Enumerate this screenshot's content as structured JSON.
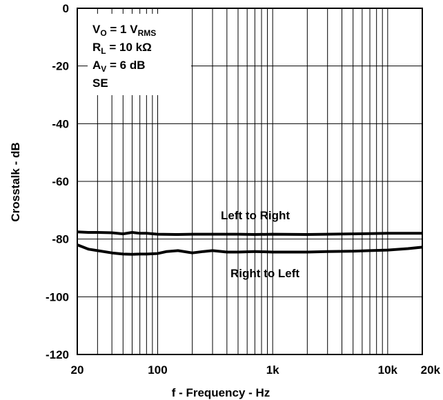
{
  "chart_data": {
    "type": "line",
    "title": "",
    "xlabel": "f - Frequency - Hz",
    "ylabel": "Crosstalk - dB",
    "x_scale": "log",
    "xlim": [
      20,
      20000
    ],
    "ylim": [
      -120,
      0
    ],
    "grid": true,
    "x_ticks": [
      {
        "value": 20,
        "label": "20"
      },
      {
        "value": 100,
        "label": "100"
      },
      {
        "value": 1000,
        "label": "1k"
      },
      {
        "value": 10000,
        "label": "10k"
      },
      {
        "value": 20000,
        "label": "20k"
      }
    ],
    "y_ticks": [
      {
        "value": 0,
        "label": "0"
      },
      {
        "value": -20,
        "label": "-20"
      },
      {
        "value": -40,
        "label": "-40"
      },
      {
        "value": -60,
        "label": "-60"
      },
      {
        "value": -80,
        "label": "-80"
      },
      {
        "value": -100,
        "label": "-100"
      },
      {
        "value": -120,
        "label": "-120"
      }
    ],
    "conditions": [
      {
        "main": "V",
        "sub": "O",
        "rest": " = 1 V",
        "sub2": "RMS"
      },
      {
        "main": "R",
        "sub": "L",
        "rest": " = 10 kΩ",
        "sub2": ""
      },
      {
        "main": "A",
        "sub": "V",
        "rest": " = 6 dB",
        "sub2": ""
      },
      {
        "main": "SE",
        "sub": "",
        "rest": "",
        "sub2": ""
      }
    ],
    "series": [
      {
        "name": "Left to Right",
        "x": [
          20,
          25,
          30,
          40,
          50,
          60,
          70,
          80,
          100,
          150,
          200,
          300,
          500,
          700,
          1000,
          2000,
          3000,
          5000,
          7000,
          10000,
          15000,
          20000
        ],
        "y": [
          -77.5,
          -77.7,
          -77.7,
          -77.8,
          -78.2,
          -77.7,
          -78.0,
          -78.0,
          -78.3,
          -78.4,
          -78.3,
          -78.3,
          -78.3,
          -78.4,
          -78.3,
          -78.4,
          -78.3,
          -78.2,
          -78.1,
          -78.0,
          -78.0,
          -78.0
        ]
      },
      {
        "name": "Right to Left",
        "x": [
          20,
          25,
          30,
          40,
          50,
          60,
          70,
          80,
          100,
          120,
          150,
          200,
          250,
          300,
          400,
          500,
          700,
          1000,
          2000,
          3000,
          5000,
          7000,
          10000,
          15000,
          20000
        ],
        "y": [
          -82.0,
          -83.5,
          -84.0,
          -84.8,
          -85.2,
          -85.3,
          -85.2,
          -85.2,
          -85.0,
          -84.3,
          -84.0,
          -84.8,
          -84.3,
          -84.0,
          -84.5,
          -84.5,
          -84.3,
          -84.5,
          -84.5,
          -84.3,
          -84.2,
          -84.0,
          -83.8,
          -83.3,
          -82.8
        ]
      }
    ]
  }
}
